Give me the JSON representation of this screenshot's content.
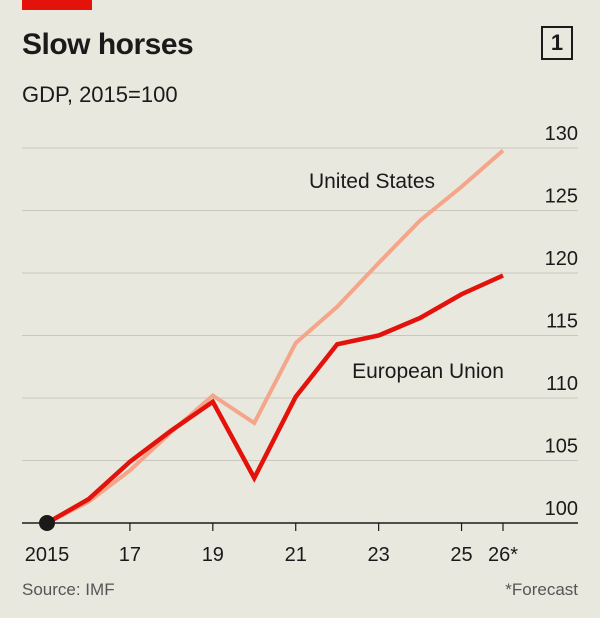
{
  "header": {
    "title": "Slow horses",
    "subtitle": "GDP, 2015=100",
    "chart_number": "1"
  },
  "footer": {
    "source": "Source: IMF",
    "note": "*Forecast"
  },
  "colors": {
    "background": "#e9e8de",
    "accent": "#e3120b",
    "us_line": "#f4a58a",
    "eu_line": "#e3120b",
    "grid": "#c8c7bd",
    "text": "#1a1a1a"
  },
  "chart_data": {
    "type": "line",
    "title": "Slow horses",
    "subtitle": "GDP, 2015=100",
    "x": [
      2015,
      2016,
      2017,
      2018,
      2019,
      2020,
      2021,
      2022,
      2023,
      2024,
      2025,
      2026
    ],
    "x_tick_values": [
      2015,
      2017,
      2019,
      2021,
      2023,
      2025,
      2026
    ],
    "x_tick_labels": [
      "2015",
      "17",
      "19",
      "21",
      "23",
      "25",
      "26*"
    ],
    "y_ticks": [
      100,
      105,
      110,
      115,
      120,
      125,
      130
    ],
    "ylim": [
      100,
      130
    ],
    "grid": true,
    "series": [
      {
        "name": "United States",
        "color": "#f4a58a",
        "values": [
          100,
          101.7,
          104.2,
          107.3,
          110.2,
          108.0,
          114.4,
          117.3,
          120.8,
          124.2,
          126.9,
          129.8
        ]
      },
      {
        "name": "European Union",
        "color": "#e3120b",
        "values": [
          100,
          101.9,
          104.9,
          107.4,
          109.7,
          103.6,
          110.1,
          114.3,
          115.0,
          116.4,
          118.3,
          119.8
        ]
      }
    ],
    "annotations": [
      {
        "text": "United States",
        "series": "United States"
      },
      {
        "text": "European Union",
        "series": "European Union"
      }
    ],
    "base_marker": {
      "x": 2015,
      "y": 100
    }
  }
}
